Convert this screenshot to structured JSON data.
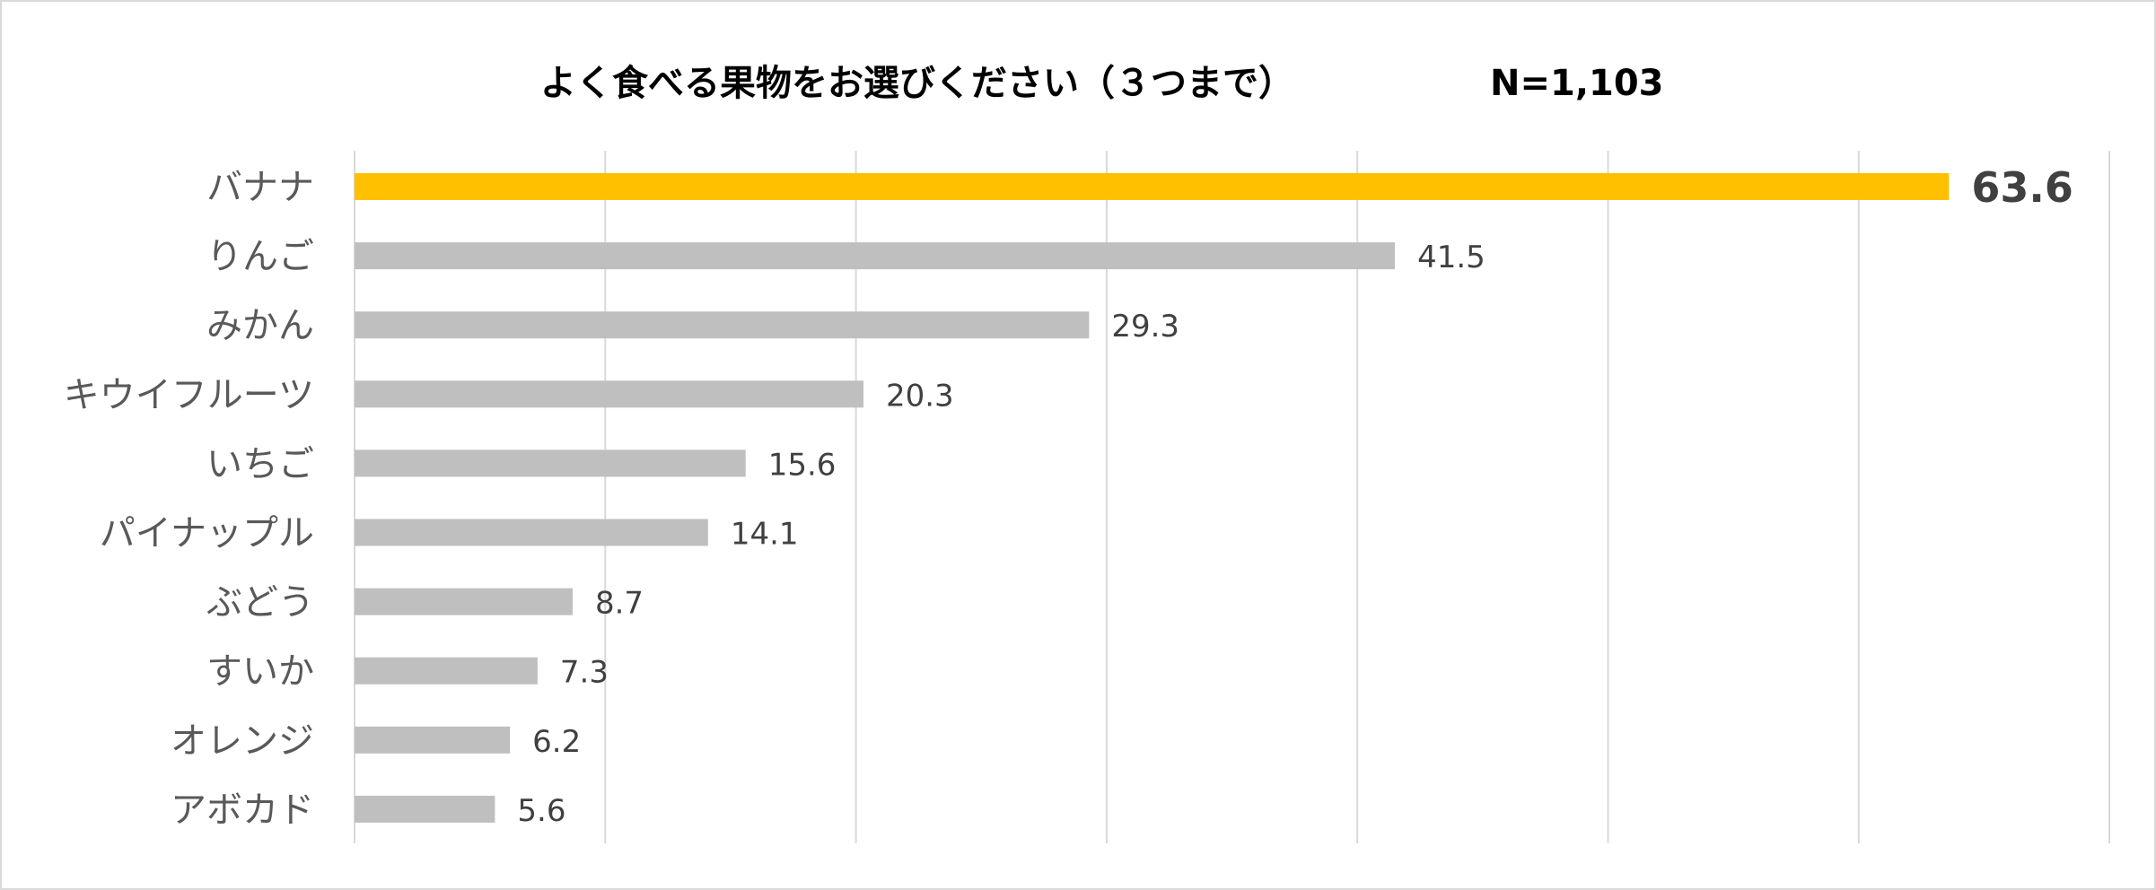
{
  "chart_data": {
    "type": "bar",
    "orientation": "horizontal",
    "title": "よく食べる果物をお選びください（３つまで）",
    "sample_size": "N=1,103",
    "categories": [
      "バナナ",
      "りんご",
      "みかん",
      "キウイフルーツ",
      "いちご",
      "パイナップル",
      "ぶどう",
      "すいか",
      "オレンジ",
      "アボカド"
    ],
    "values": [
      63.6,
      41.5,
      29.3,
      20.3,
      15.6,
      14.1,
      8.7,
      7.3,
      6.2,
      5.6
    ],
    "value_labels": [
      "63.6",
      "41.5",
      "29.3",
      "20.3",
      "15.6",
      "14.1",
      "8.7",
      "7.3",
      "6.2",
      "5.6"
    ],
    "highlight_index": 0,
    "xlim": [
      0,
      70
    ],
    "x_grid_step": 10,
    "grid": true,
    "xlabel": "",
    "ylabel": "",
    "legend": "none",
    "colors": {
      "highlight": "#FFC000",
      "default": "#BFBFBF",
      "grid": "#D9D9D9",
      "border": "#D9D9D9"
    }
  }
}
